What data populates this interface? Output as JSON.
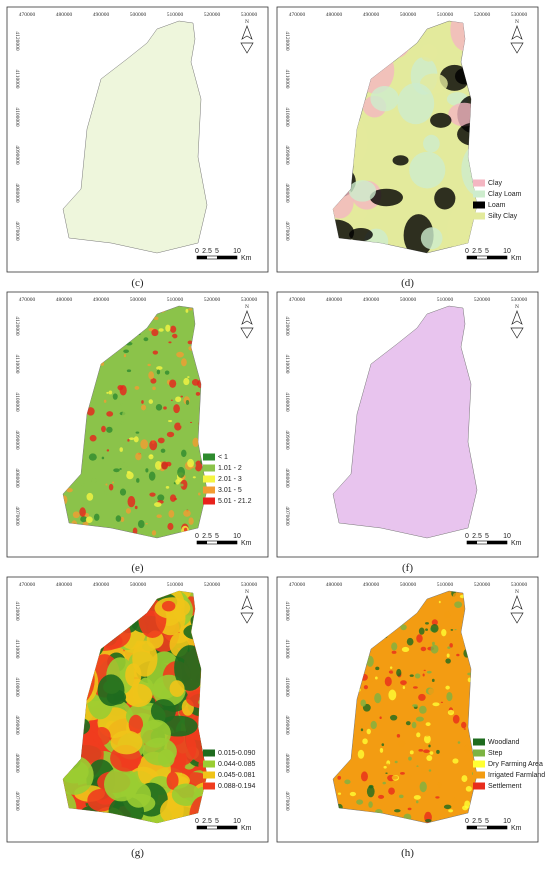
{
  "map_frame": {
    "x_ticks": [
      "470000",
      "480000",
      "490000",
      "500000",
      "510000",
      "520000",
      "530000"
    ],
    "y_ticks": [
      "4120000",
      "4110000",
      "4100000",
      "4090000",
      "4080000",
      "4070000"
    ],
    "scale_labels": [
      "0",
      "2.5",
      "5",
      "10"
    ],
    "scale_unit": "Km",
    "north": "N"
  },
  "panels": [
    {
      "caption": "(c)",
      "legend": []
    },
    {
      "caption": "(d)",
      "legend": [
        {
          "label": "Clay",
          "color": "#f4b6c2"
        },
        {
          "label": "Clay Loam",
          "color": "#cdeccd"
        },
        {
          "label": "Loam",
          "color": "#000000"
        },
        {
          "label": "Silty Clay",
          "color": "#e3ea9c"
        }
      ]
    },
    {
      "caption": "(e)",
      "legend": [
        {
          "label": "< 1",
          "color": "#2e8b2e"
        },
        {
          "label": "1.01 - 2",
          "color": "#8bc34a"
        },
        {
          "label": "2.01 - 3",
          "color": "#f5f542"
        },
        {
          "label": "3.01 - 5",
          "color": "#f39c32"
        },
        {
          "label": "5.01 - 21.2",
          "color": "#e8221c"
        }
      ]
    },
    {
      "caption": "(f)",
      "legend": []
    },
    {
      "caption": "(g)",
      "legend": [
        {
          "label": "0.015-0.090",
          "color": "#1e6b1e"
        },
        {
          "label": "0.044-0.085",
          "color": "#9acd32"
        },
        {
          "label": "0.045-0.081",
          "color": "#f0c419"
        },
        {
          "label": "0.088-0.194",
          "color": "#f03c1e"
        }
      ]
    },
    {
      "caption": "(h)",
      "legend": [
        {
          "label": "Woodland",
          "color": "#1e6b1e"
        },
        {
          "label": "Step",
          "color": "#7cb342"
        },
        {
          "label": "Dry Farming Area",
          "color": "#ffff33"
        },
        {
          "label": "Irrigated Farmland",
          "color": "#f39c12"
        },
        {
          "label": "Settlement",
          "color": "#e82c1c"
        }
      ]
    }
  ]
}
